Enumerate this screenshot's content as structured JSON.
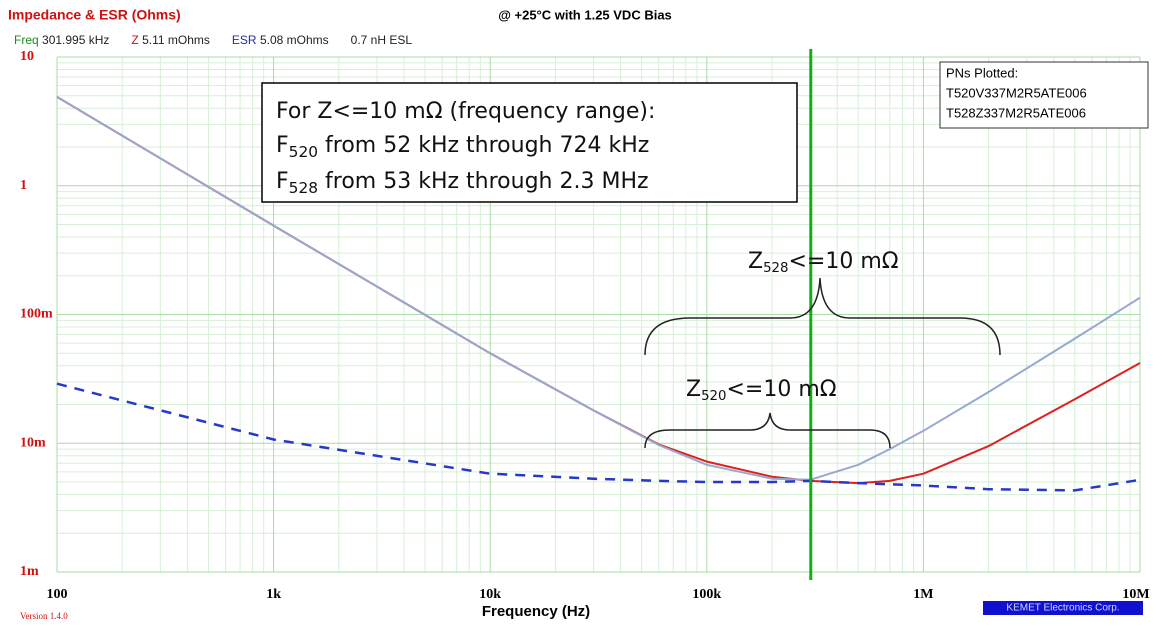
{
  "chart_data": {
    "type": "line",
    "title": "Impedance & ESR (Ohms)",
    "subtitle": "@ +25°C with 1.25 VDC Bias",
    "xlabel": "Frequency (Hz)",
    "readout": [
      {
        "name": "Freq",
        "text": "301.995 kHz",
        "color": "#1a8a1a"
      },
      {
        "name": "Z",
        "text": "5.11 mOhms",
        "color": "#d01010"
      },
      {
        "name": "ESR",
        "text": "5.08 mOhms",
        "color": "#2030a0"
      },
      {
        "name": "",
        "text": "0.7 nH ESL",
        "color": "#222"
      }
    ],
    "cursor": 301995,
    "legend_title": "PNs Plotted:",
    "legend_items": [
      "T520V337M2R5ATE006",
      "T528Z337M2R5ATE006"
    ],
    "annotation_title": "For Z<=10 mΩ (frequency range):",
    "annotation_lines": [
      {
        "main": "F",
        "sub": "520",
        "rest": " from 52 kHz through 724 kHz"
      },
      {
        "main": "F",
        "sub": "528",
        "rest": " from 53 kHz through 2.3 MHz"
      }
    ],
    "brace_labels": [
      {
        "main": "Z",
        "sub": "528",
        "rest": "<=10 mΩ"
      },
      {
        "main": "Z",
        "sub": "520",
        "rest": "<=10 mΩ"
      }
    ],
    "version": "Version 1.4.0",
    "footer": "KEMET Electronics Corp.",
    "log_x": true,
    "log_y": true,
    "grid": true,
    "xlim": [
      100,
      10000000
    ],
    "xticks": [
      {
        "value": 100,
        "label": "100"
      },
      {
        "value": 1000,
        "label": "1k"
      },
      {
        "value": 10000,
        "label": "10k"
      },
      {
        "value": 100000,
        "label": "100k"
      },
      {
        "value": 1000000,
        "label": "1M"
      },
      {
        "value": 10000000,
        "label": "10M"
      }
    ],
    "ylim": [
      0.001,
      10
    ],
    "yticks": [
      {
        "value": 10,
        "label": "10"
      },
      {
        "value": 1,
        "label": "1"
      },
      {
        "value": 0.1,
        "label": "100m"
      },
      {
        "value": 0.01,
        "label": "10m"
      },
      {
        "value": 0.001,
        "label": "1m"
      }
    ],
    "x": [
      100,
      1000,
      10000,
      30000,
      60000,
      100000,
      200000,
      300000,
      500000,
      700000,
      1000000,
      2000000,
      5000000,
      10000000
    ],
    "series": [
      {
        "color": "#e02020",
        "dash": false,
        "values": [
          4.9,
          0.49,
          0.05,
          0.018,
          0.0098,
          0.0072,
          0.0055,
          0.0051,
          0.0049,
          0.0051,
          0.0058,
          0.0095,
          0.022,
          0.042
        ]
      },
      {
        "color": "#98a8d0",
        "dash": false,
        "values": [
          4.9,
          0.49,
          0.05,
          0.018,
          0.0097,
          0.0068,
          0.0053,
          0.0052,
          0.0068,
          0.009,
          0.0125,
          0.025,
          0.065,
          0.135
        ]
      },
      {
        "color": "#2838c8",
        "dash": true,
        "values": [
          0.029,
          0.0107,
          0.0058,
          0.0053,
          0.0051,
          0.005,
          0.005,
          0.0051,
          0.0049,
          0.0048,
          0.0047,
          0.0044,
          0.0043,
          0.0052
        ]
      }
    ]
  }
}
